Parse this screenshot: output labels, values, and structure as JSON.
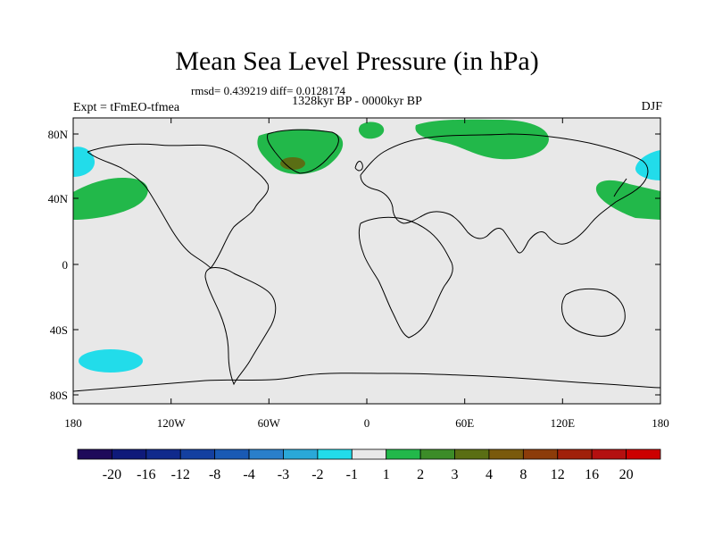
{
  "title": "Mean Sea Level Pressure (in hPa)",
  "stats": "rmsd= 0.439219 diff= 0.0128174",
  "period": "1328kyr BP - 0000kyr BP",
  "experiment": "Expt = tFmEO-tfmea",
  "season": "DJF",
  "lat_labels": [
    "80N",
    "40N",
    "0",
    "40S",
    "80S"
  ],
  "lon_labels": [
    "180",
    "120W",
    "60W",
    "0",
    "60E",
    "120E",
    "180"
  ],
  "colorbar": {
    "labels": [
      "-20",
      "-16",
      "-12",
      "-8",
      "-4",
      "-3",
      "-2",
      "-1",
      "1",
      "2",
      "3",
      "4",
      "8",
      "12",
      "16",
      "20"
    ],
    "colors": [
      "#1e0a5a",
      "#0f1a7a",
      "#102a8c",
      "#1440a0",
      "#1a5ab4",
      "#2a7fca",
      "#2aa8d8",
      "#22dcea",
      "#e8e8e8",
      "#22b84a",
      "#3c8c28",
      "#5a6e14",
      "#7a5a0c",
      "#8c3c0a",
      "#a0200a",
      "#b41010",
      "#cc0000"
    ]
  },
  "map_colors": {
    "ocean_land": "#e8e8e8",
    "positive_small": "#22b84a",
    "positive_mid": "#5a6e14",
    "negative_small": "#22dcea"
  }
}
